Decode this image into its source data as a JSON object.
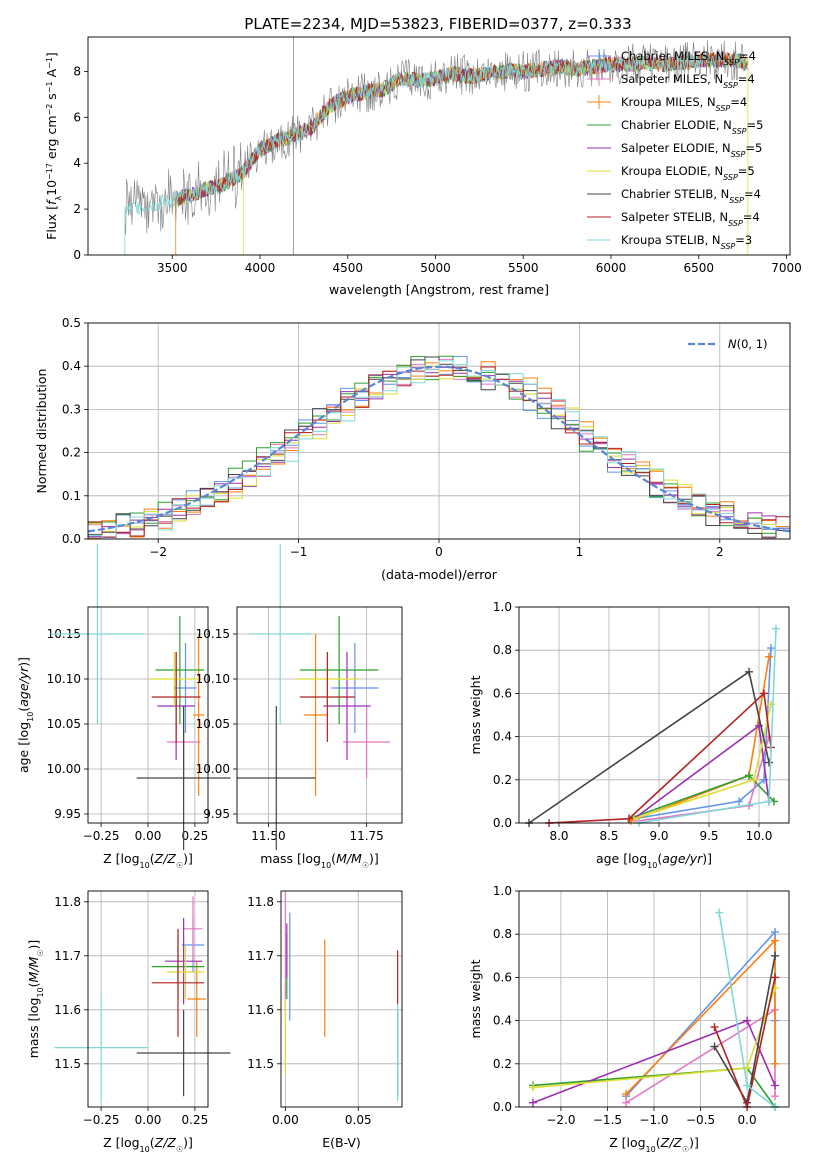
{
  "title": "PLATE=2234, MJD=53823, FIBERID=0377, z=0.333",
  "colors": {
    "Chabrier MILES": "#6495ed",
    "Salpeter MILES": "#e377c2",
    "Kroupa MILES": "#ff7f0e",
    "Chabrier ELODIE": "#2ca02c",
    "Salpeter ELODIE": "#9b30b0",
    "Kroupa ELODIE": "#dddd33",
    "Chabrier STELIB": "#444444",
    "Salpeter STELIB": "#b22222",
    "Kroupa STELIB": "#80d8d8"
  },
  "chart_data": [
    {
      "type": "line",
      "title": "PLATE=2234, MJD=53823, FIBERID=0377, z=0.333",
      "xlabel": "wavelength [Angstrom, rest frame]",
      "ylabel": "Flux [f_λ 10^-17 erg cm^-2 s^-1 A^-1]",
      "xlim": [
        3020,
        7020
      ],
      "ylim": [
        0,
        9.5
      ],
      "xticks": [
        3500,
        4000,
        4500,
        5000,
        5500,
        6000,
        6500,
        7000
      ],
      "yticks": [
        0,
        2,
        4,
        6,
        8
      ],
      "legend_position": "right",
      "series": [
        {
          "name": "Chabrier MILES",
          "nssp": "4"
        },
        {
          "name": "Salpeter MILES",
          "nssp": "4"
        },
        {
          "name": "Kroupa MILES",
          "nssp": "4"
        },
        {
          "name": "Chabrier ELODIE",
          "nssp": "5"
        },
        {
          "name": "Salpeter ELODIE",
          "nssp": "5"
        },
        {
          "name": "Kroupa ELODIE",
          "nssp": "5"
        },
        {
          "name": "Chabrier STELIB",
          "nssp": "4"
        },
        {
          "name": "Salpeter STELIB",
          "nssp": "4"
        },
        {
          "name": "Kroupa STELIB",
          "nssp": "3"
        }
      ],
      "continuum": {
        "x": [
          3230,
          3300,
          3400,
          3500,
          3600,
          3700,
          3800,
          3900,
          4000,
          4100,
          4200,
          4300,
          4400,
          4500,
          4600,
          4700,
          4800,
          4900,
          5000,
          5100,
          5200,
          5300,
          5400,
          5500,
          5600,
          5700,
          5800,
          5900,
          6000,
          6100,
          6200,
          6300,
          6400,
          6500,
          6600,
          6700,
          6760
        ],
        "y": [
          1.9,
          2.1,
          2.2,
          2.4,
          2.6,
          2.9,
          3.1,
          3.6,
          4.6,
          5.0,
          5.2,
          5.6,
          6.5,
          6.9,
          7.1,
          7.2,
          7.7,
          7.6,
          7.7,
          7.9,
          7.8,
          7.9,
          8.0,
          8.0,
          8.1,
          8.2,
          8.1,
          8.2,
          8.3,
          8.3,
          8.4,
          8.3,
          8.4,
          8.5,
          8.5,
          8.5,
          8.4
        ]
      }
    },
    {
      "type": "histogram",
      "xlabel": "(data-model)/error",
      "ylabel": "Normed distribution",
      "xlim": [
        -2.5,
        2.5
      ],
      "ylim": [
        0,
        0.5
      ],
      "xticks": [
        -2,
        -1,
        0,
        1,
        2
      ],
      "yticks": [
        0.0,
        0.1,
        0.2,
        0.3,
        0.4,
        0.5
      ],
      "reference_curve": "N(0,1)",
      "legend_label": "N(0,1)",
      "grid": true
    },
    {
      "type": "scatter",
      "xlabel": "Z [log10(Z/Z☉)]",
      "ylabel": "age [log10(age/yr)]",
      "xlim": [
        -0.32,
        0.32
      ],
      "ylim": [
        9.94,
        10.18
      ],
      "xticks": [
        -0.25,
        0.0,
        0.25
      ],
      "yticks": [
        9.95,
        10.0,
        10.05,
        10.1,
        10.15
      ],
      "points": [
        {
          "model": "Chabrier MILES",
          "x": 0.2,
          "y": 10.09,
          "xerr": 0.06,
          "yerr": 0.05
        },
        {
          "model": "Salpeter MILES",
          "x": 0.19,
          "y": 10.03,
          "xerr": 0.09,
          "yerr": 0.04
        },
        {
          "model": "Kroupa MILES",
          "x": 0.27,
          "y": 10.06,
          "xerr": 0.03,
          "yerr": 0.09
        },
        {
          "model": "Chabrier ELODIE",
          "x": 0.17,
          "y": 10.11,
          "xerr": 0.13,
          "yerr": 0.06
        },
        {
          "model": "Salpeter ELODIE",
          "x": 0.15,
          "y": 10.07,
          "xerr": 0.1,
          "yerr": 0.06
        },
        {
          "model": "Kroupa ELODIE",
          "x": 0.14,
          "y": 10.1,
          "xerr": 0.13,
          "yerr": 0.03
        },
        {
          "model": "Chabrier STELIB",
          "x": 0.19,
          "y": 9.99,
          "xerr": 0.25,
          "yerr": 0.08
        },
        {
          "model": "Salpeter STELIB",
          "x": 0.15,
          "y": 10.08,
          "xerr": 0.13,
          "yerr": 0.05
        },
        {
          "model": "Kroupa STELIB",
          "x": -0.27,
          "y": 10.15,
          "xerr": 0.25,
          "yerr": 0.1
        }
      ]
    },
    {
      "type": "scatter",
      "xlabel": "mass [log10(M/M☉)]",
      "xlim": [
        11.42,
        11.84
      ],
      "ylim": [
        9.94,
        10.18
      ],
      "xticks": [
        11.5,
        11.75
      ],
      "yticks": [
        9.95,
        10.0,
        10.05,
        10.1,
        10.15
      ],
      "points": [
        {
          "model": "Chabrier MILES",
          "x": 11.72,
          "y": 10.09,
          "xerr": 0.06,
          "yerr": 0.05
        },
        {
          "model": "Salpeter MILES",
          "x": 11.75,
          "y": 10.03,
          "xerr": 0.06,
          "yerr": 0.04
        },
        {
          "model": "Kroupa MILES",
          "x": 11.62,
          "y": 10.06,
          "xerr": 0.03,
          "yerr": 0.09
        },
        {
          "model": "Chabrier ELODIE",
          "x": 11.68,
          "y": 10.11,
          "xerr": 0.1,
          "yerr": 0.06
        },
        {
          "model": "Salpeter ELODIE",
          "x": 11.7,
          "y": 10.07,
          "xerr": 0.06,
          "yerr": 0.06
        },
        {
          "model": "Kroupa ELODIE",
          "x": 11.65,
          "y": 10.1,
          "xerr": 0.08,
          "yerr": 0.03
        },
        {
          "model": "Chabrier STELIB",
          "x": 11.52,
          "y": 9.99,
          "xerr": 0.1,
          "yerr": 0.08
        },
        {
          "model": "Salpeter STELIB",
          "x": 11.65,
          "y": 10.08,
          "xerr": 0.07,
          "yerr": 0.05
        },
        {
          "model": "Kroupa STELIB",
          "x": 11.53,
          "y": 10.15,
          "xerr": 0.08,
          "yerr": 0.1
        }
      ]
    },
    {
      "type": "line",
      "xlabel": "age [log10(age/yr)]",
      "ylabel": "mass weight",
      "xlim": [
        7.6,
        10.3
      ],
      "ylim": [
        0,
        1.0
      ],
      "xticks": [
        8.0,
        8.5,
        9.0,
        9.5,
        10.0
      ],
      "yticks": [
        0.0,
        0.2,
        0.4,
        0.6,
        0.8,
        1.0
      ],
      "series": [
        {
          "name": "Chabrier MILES",
          "x": [
            8.75,
            9.8,
            10.05,
            10.12
          ],
          "y": [
            0.02,
            0.1,
            0.2,
            0.81
          ]
        },
        {
          "name": "Salpeter MILES",
          "x": [
            8.8,
            9.9,
            10.1
          ],
          "y": [
            0.01,
            0.08,
            0.4
          ]
        },
        {
          "name": "Kroupa MILES",
          "x": [
            8.72,
            9.9,
            10.1
          ],
          "y": [
            0.01,
            0.22,
            0.77
          ]
        },
        {
          "name": "Chabrier ELODIE",
          "x": [
            8.7,
            9.9,
            10.15
          ],
          "y": [
            0.02,
            0.22,
            0.1
          ]
        },
        {
          "name": "Salpeter ELODIE",
          "x": [
            8.75,
            10.0,
            10.1
          ],
          "y": [
            0.02,
            0.45,
            0.1
          ]
        },
        {
          "name": "Kroupa ELODIE",
          "x": [
            8.75,
            9.95,
            10.12
          ],
          "y": [
            0.02,
            0.2,
            0.55
          ]
        },
        {
          "name": "Chabrier STELIB",
          "x": [
            7.7,
            9.9,
            10.1
          ],
          "y": [
            0.0,
            0.7,
            0.28
          ]
        },
        {
          "name": "Salpeter STELIB",
          "x": [
            7.9,
            8.7,
            10.05,
            10.12
          ],
          "y": [
            0.0,
            0.02,
            0.6,
            0.35
          ]
        },
        {
          "name": "Kroupa STELIB",
          "x": [
            8.8,
            10.1,
            10.17
          ],
          "y": [
            0.0,
            0.1,
            0.9
          ]
        }
      ]
    },
    {
      "type": "scatter",
      "xlabel": "Z [log10(Z/Z☉)]",
      "ylabel": "mass [log10(M/M☉)]",
      "xlim": [
        -0.32,
        0.32
      ],
      "ylim": [
        11.42,
        11.82
      ],
      "xticks": [
        -0.25,
        0.0,
        0.25
      ],
      "yticks": [
        11.5,
        11.6,
        11.7,
        11.8
      ],
      "points": [
        {
          "model": "Chabrier MILES",
          "x": 0.24,
          "y": 11.72,
          "xerr": 0.06,
          "yerr": 0.05
        },
        {
          "model": "Salpeter MILES",
          "x": 0.24,
          "y": 11.75,
          "xerr": 0.05,
          "yerr": 0.06
        },
        {
          "model": "Kroupa MILES",
          "x": 0.26,
          "y": 11.62,
          "xerr": 0.05,
          "yerr": 0.07
        },
        {
          "model": "Chabrier ELODIE",
          "x": 0.16,
          "y": 11.68,
          "xerr": 0.14,
          "yerr": 0.06
        },
        {
          "model": "Salpeter ELODIE",
          "x": 0.19,
          "y": 11.69,
          "xerr": 0.1,
          "yerr": 0.08
        },
        {
          "model": "Kroupa ELODIE",
          "x": 0.2,
          "y": 11.67,
          "xerr": 0.1,
          "yerr": 0.05
        },
        {
          "model": "Chabrier STELIB",
          "x": 0.19,
          "y": 11.52,
          "xerr": 0.25,
          "yerr": 0.08
        },
        {
          "model": "Salpeter STELIB",
          "x": 0.16,
          "y": 11.65,
          "xerr": 0.14,
          "yerr": 0.1
        },
        {
          "model": "Kroupa STELIB",
          "x": -0.25,
          "y": 11.53,
          "xerr": 0.25,
          "yerr": 0.1
        }
      ]
    },
    {
      "type": "scatter",
      "xlabel": "E(B-V)",
      "xlim": [
        -0.003,
        0.08
      ],
      "ylim": [
        11.42,
        11.82
      ],
      "xticks": [
        0.0,
        0.05
      ],
      "yticks": [
        11.5,
        11.6,
        11.7,
        11.8
      ],
      "points": [
        {
          "model": "Chabrier MILES",
          "x": 0.003,
          "y": 11.68,
          "yerr": 0.1
        },
        {
          "model": "Salpeter MILES",
          "x": 0.0,
          "y": 11.7,
          "yerr": 0.12
        },
        {
          "model": "Kroupa MILES",
          "x": 0.027,
          "y": 11.64,
          "yerr": 0.09
        },
        {
          "model": "Chabrier ELODIE",
          "x": 0.001,
          "y": 11.68,
          "yerr": 0.06
        },
        {
          "model": "Salpeter ELODIE",
          "x": 0.001,
          "y": 11.71,
          "yerr": 0.05
        },
        {
          "model": "Kroupa ELODIE",
          "x": 0.0,
          "y": 11.55,
          "yerr": 0.07
        },
        {
          "model": "Chabrier STELIB",
          "x": 0.077,
          "y": 11.52,
          "yerr": 0.08
        },
        {
          "model": "Salpeter STELIB",
          "x": 0.077,
          "y": 11.66,
          "yerr": 0.05
        },
        {
          "model": "Kroupa STELIB",
          "x": 0.077,
          "y": 11.52,
          "yerr": 0.09
        }
      ]
    },
    {
      "type": "line",
      "xlabel": "Z [log10(Z/Z☉)]",
      "ylabel": "mass weight",
      "xlim": [
        -2.45,
        0.45
      ],
      "ylim": [
        0,
        1.0
      ],
      "xticks": [
        -2.0,
        -1.5,
        -1.0,
        -0.5,
        0.0
      ],
      "yticks": [
        0.0,
        0.2,
        0.4,
        0.6,
        0.8,
        1.0
      ],
      "series": [
        {
          "name": "Chabrier MILES",
          "x": [
            -1.3,
            0.3,
            0.3
          ],
          "y": [
            0.05,
            0.81,
            0.4
          ]
        },
        {
          "name": "Salpeter MILES",
          "x": [
            -1.3,
            0.3,
            0.3
          ],
          "y": [
            0.02,
            0.45,
            0.05
          ]
        },
        {
          "name": "Kroupa MILES",
          "x": [
            -1.3,
            0.3,
            0.3
          ],
          "y": [
            0.06,
            0.77,
            0.2
          ]
        },
        {
          "name": "Chabrier ELODIE",
          "x": [
            -2.3,
            0.0,
            0.3
          ],
          "y": [
            0.1,
            0.18,
            0.0
          ]
        },
        {
          "name": "Salpeter ELODIE",
          "x": [
            -2.3,
            0.0,
            0.3
          ],
          "y": [
            0.02,
            0.4,
            0.1
          ]
        },
        {
          "name": "Kroupa ELODIE",
          "x": [
            -2.3,
            0.0,
            0.3
          ],
          "y": [
            0.09,
            0.18,
            0.55
          ]
        },
        {
          "name": "Chabrier STELIB",
          "x": [
            -0.35,
            0.0,
            0.3
          ],
          "y": [
            0.28,
            0.02,
            0.7
          ]
        },
        {
          "name": "Salpeter STELIB",
          "x": [
            -0.35,
            0.0,
            0.3
          ],
          "y": [
            0.37,
            0.0,
            0.6
          ]
        },
        {
          "name": "Kroupa STELIB",
          "x": [
            -0.3,
            0.0,
            0.3
          ],
          "y": [
            0.9,
            0.1,
            0.0
          ]
        }
      ]
    }
  ]
}
